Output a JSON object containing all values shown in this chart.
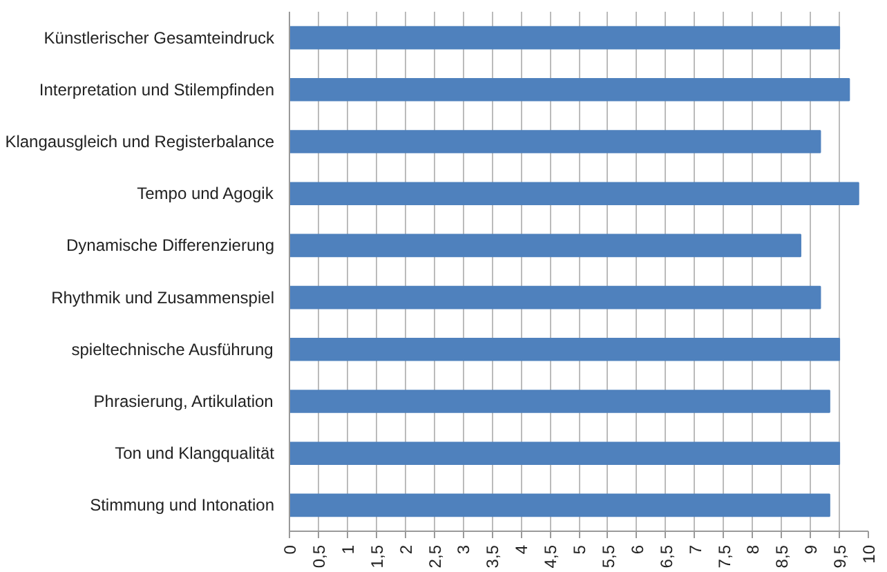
{
  "chart_data": {
    "type": "bar",
    "orientation": "horizontal",
    "categories": [
      "Künstlerischer Gesamteindruck",
      "Interpretation und Stilempfinden",
      "Klangausgleich und Registerbalance",
      "Tempo und Agogik",
      "Dynamische Differenzierung",
      "Rhythmik und Zusammenspiel",
      "spieltechnische Ausführung",
      "Phrasierung, Artikulation",
      "Ton und Klangqualität",
      "Stimmung und Intonation"
    ],
    "values": [
      9.5,
      9.67,
      9.17,
      9.83,
      8.83,
      9.17,
      9.5,
      9.33,
      9.5,
      9.33
    ],
    "color": "#4f81bd",
    "xlim": [
      0,
      10
    ],
    "xticks": [
      0,
      {
        "value": 0.5,
        "label": "0,5"
      },
      1,
      {
        "value": 1.5,
        "label": "1,5"
      },
      2,
      {
        "value": 2.5,
        "label": "2,5"
      },
      3,
      {
        "value": 3.5,
        "label": "3,5"
      },
      4,
      {
        "value": 4.5,
        "label": "4,5"
      },
      5,
      {
        "value": 5.5,
        "label": "5,5"
      },
      6,
      {
        "value": 6.5,
        "label": "6,5"
      },
      7,
      {
        "value": 7.5,
        "label": "7,5"
      },
      8,
      {
        "value": 8.5,
        "label": "8,5"
      },
      9,
      {
        "value": 9.5,
        "label": "9,5"
      },
      10
    ],
    "grid": "x"
  }
}
